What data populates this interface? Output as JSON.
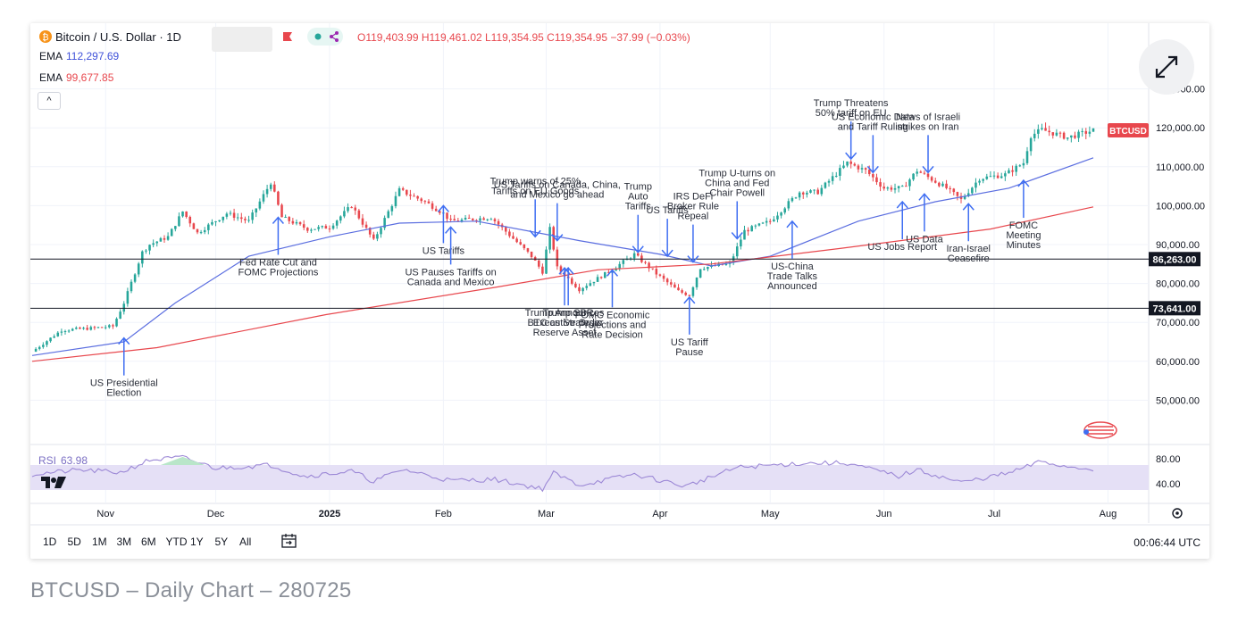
{
  "header": {
    "symbol": "Bitcoin / U.S. Dollar · 1D",
    "ohlc": "O119,403.99 H119,461.02 L119,354.95 C119,354.95 −37.99 (−0.03%)",
    "ema1_label": "EMA",
    "ema1_value": "112,297.69",
    "ema2_label": "EMA",
    "ema2_value": "99,677.85",
    "collapse_glyph": "^"
  },
  "toolbar": {
    "ranges": [
      "1D",
      "5D",
      "1M",
      "3M",
      "6M",
      "YTD",
      "1Y",
      "5Y",
      "All"
    ],
    "time": "00:06:44 UTC"
  },
  "rsi": {
    "label": "RSI",
    "value": "63.98",
    "ticks": [
      "80.00",
      "40.00"
    ]
  },
  "caption": "BTCUSD – Daily Chart – 280725",
  "colors": {
    "ema50": "#5b6ee0",
    "ema200": "#e8474d",
    "up": "#26a69a",
    "down": "#e8474d",
    "arrow": "#3f6ef2",
    "rsi": "#9c88d6",
    "rsi_band": "#e5e0f6",
    "badge": "#e8474d"
  },
  "chart_data": {
    "type": "candlestick",
    "symbol": "BTCUSD",
    "last_price_label": "BTCUSD",
    "ylim": [
      40000,
      140000
    ],
    "y_ticks": [
      "50,000.00",
      "60,000.00",
      "70,000.00",
      "80,000.00",
      "90,000.00",
      "100,000.00",
      "110,000.00",
      "120,000.00",
      "130,000.00"
    ],
    "x_ticks": [
      "Nov",
      "Dec",
      "2025",
      "Feb",
      "Mar",
      "Apr",
      "May",
      "Jun",
      "Jul",
      "Aug"
    ],
    "x_tick_dates": [
      "2024-11-01",
      "2024-12-01",
      "2025-01-01",
      "2025-02-01",
      "2025-03-01",
      "2025-04-01",
      "2025-05-01",
      "2025-06-01",
      "2025-07-01",
      "2025-08-01"
    ],
    "date_range": [
      "2024-10-12",
      "2025-07-28"
    ],
    "horizontal_lines": [
      {
        "value": 86263,
        "label": "86,263.00"
      },
      {
        "value": 73641,
        "label": "73,641.00"
      }
    ],
    "close_path": [
      [
        "2024-10-12",
        62500
      ],
      [
        "2024-10-20",
        68000
      ],
      [
        "2024-10-28",
        68500
      ],
      [
        "2024-11-03",
        69000
      ],
      [
        "2024-11-06",
        75000
      ],
      [
        "2024-11-11",
        88000
      ],
      [
        "2024-11-13",
        90000
      ],
      [
        "2024-11-18",
        92000
      ],
      [
        "2024-11-22",
        98500
      ],
      [
        "2024-11-26",
        93000
      ],
      [
        "2024-12-04",
        98000
      ],
      [
        "2024-12-10",
        96000
      ],
      [
        "2024-12-16",
        106000
      ],
      [
        "2024-12-19",
        97000
      ],
      [
        "2024-12-26",
        94000
      ],
      [
        "2025-01-01",
        94500
      ],
      [
        "2025-01-07",
        100000
      ],
      [
        "2025-01-13",
        91000
      ],
      [
        "2025-01-20",
        104000
      ],
      [
        "2025-01-27",
        101000
      ],
      [
        "2025-02-01",
        98000
      ],
      [
        "2025-02-03",
        96000
      ],
      [
        "2025-02-14",
        97000
      ],
      [
        "2025-02-25",
        87000
      ],
      [
        "2025-02-28",
        83000
      ],
      [
        "2025-03-02",
        94000
      ],
      [
        "2025-03-04",
        84000
      ],
      [
        "2025-03-10",
        78500
      ],
      [
        "2025-03-18",
        83000
      ],
      [
        "2025-03-25",
        87500
      ],
      [
        "2025-03-31",
        82500
      ],
      [
        "2025-04-06",
        78000
      ],
      [
        "2025-04-09",
        77000
      ],
      [
        "2025-04-12",
        84000
      ],
      [
        "2025-04-20",
        85000
      ],
      [
        "2025-04-24",
        93500
      ],
      [
        "2025-05-01",
        96000
      ],
      [
        "2025-05-09",
        103500
      ],
      [
        "2025-05-14",
        103500
      ],
      [
        "2025-05-22",
        111000
      ],
      [
        "2025-05-27",
        109000
      ],
      [
        "2025-06-01",
        104500
      ],
      [
        "2025-06-06",
        104500
      ],
      [
        "2025-06-10",
        109000
      ],
      [
        "2025-06-18",
        104500
      ],
      [
        "2025-06-22",
        101500
      ],
      [
        "2025-06-27",
        107000
      ],
      [
        "2025-07-04",
        108000
      ],
      [
        "2025-07-09",
        111000
      ],
      [
        "2025-07-11",
        118000
      ],
      [
        "2025-07-14",
        119500
      ],
      [
        "2025-07-21",
        117500
      ],
      [
        "2025-07-28",
        119355
      ]
    ],
    "series": [
      {
        "name": "EMA",
        "value_label": "112,297.69",
        "values": [
          [
            "2024-10-12",
            61500
          ],
          [
            "2024-11-06",
            65000
          ],
          [
            "2024-11-20",
            75000
          ],
          [
            "2024-12-10",
            87000
          ],
          [
            "2025-01-01",
            92000
          ],
          [
            "2025-01-20",
            95500
          ],
          [
            "2025-02-10",
            96000
          ],
          [
            "2025-03-10",
            91000
          ],
          [
            "2025-04-01",
            87500
          ],
          [
            "2025-04-15",
            84500
          ],
          [
            "2025-05-01",
            87000
          ],
          [
            "2025-05-25",
            96000
          ],
          [
            "2025-06-15",
            101000
          ],
          [
            "2025-07-05",
            104500
          ],
          [
            "2025-07-28",
            112298
          ]
        ]
      },
      {
        "name": "EMA",
        "value_label": "99,677.85",
        "values": [
          [
            "2024-10-12",
            60000
          ],
          [
            "2024-11-15",
            63500
          ],
          [
            "2024-12-31",
            72000
          ],
          [
            "2025-02-15",
            79000
          ],
          [
            "2025-03-15",
            83500
          ],
          [
            "2025-04-15",
            85000
          ],
          [
            "2025-05-20",
            89000
          ],
          [
            "2025-06-30",
            94000
          ],
          [
            "2025-07-28",
            99678
          ]
        ]
      }
    ],
    "rsi_series": {
      "name": "RSI",
      "ylim": [
        20,
        100
      ],
      "values": [
        [
          "2024-10-12",
          55
        ],
        [
          "2024-10-25",
          62
        ],
        [
          "2024-11-05",
          58
        ],
        [
          "2024-11-13",
          78
        ],
        [
          "2024-11-22",
          82
        ],
        [
          "2024-12-01",
          65
        ],
        [
          "2024-12-16",
          70
        ],
        [
          "2024-12-25",
          52
        ],
        [
          "2025-01-07",
          60
        ],
        [
          "2025-01-13",
          44
        ],
        [
          "2025-01-21",
          63
        ],
        [
          "2025-02-03",
          45
        ],
        [
          "2025-02-15",
          47
        ],
        [
          "2025-02-28",
          32
        ],
        [
          "2025-03-03",
          57
        ],
        [
          "2025-03-10",
          38
        ],
        [
          "2025-03-25",
          55
        ],
        [
          "2025-04-08",
          36
        ],
        [
          "2025-04-22",
          66
        ],
        [
          "2025-05-10",
          73
        ],
        [
          "2025-05-22",
          73
        ],
        [
          "2025-06-05",
          52
        ],
        [
          "2025-06-10",
          62
        ],
        [
          "2025-06-22",
          42
        ],
        [
          "2025-07-05",
          57
        ],
        [
          "2025-07-14",
          76
        ],
        [
          "2025-07-20",
          68
        ],
        [
          "2025-07-28",
          64
        ]
      ]
    },
    "annotations": [
      {
        "text": "US Presidential\nElection",
        "date": "2024-11-06",
        "value": 66000,
        "dir": "up"
      },
      {
        "text": "Fed Rate Cut and\nFOMC Projections",
        "date": "2024-12-18",
        "value": 97000,
        "dir": "up"
      },
      {
        "text": "US Tariffs",
        "date": "2025-02-01",
        "value": 100000,
        "dir": "up"
      },
      {
        "text": "US Pauses Tariffs on\nCanada and Mexico",
        "date": "2025-02-03",
        "value": 94500,
        "dir": "up"
      },
      {
        "text": "Trump warns of 25%\nTariffs on EU Goods",
        "date": "2025-02-26",
        "value": 92000,
        "dir": "down"
      },
      {
        "text": "US Tariffs on Canada, China,\nand Mexico go ahead",
        "date": "2025-03-04",
        "value": 91000,
        "dir": "down"
      },
      {
        "text": "Trump Announces\nBTC as Strategic\nReserve Asset",
        "date": "2025-03-06",
        "value": 84000,
        "dir": "up"
      },
      {
        "text": "Trump SBR\nExecutive Order",
        "date": "2025-03-07",
        "value": 84000,
        "dir": "up"
      },
      {
        "text": "Trump\nAuto\nTariffs",
        "date": "2025-03-26",
        "value": 88000,
        "dir": "down"
      },
      {
        "text": "FOMC Economic\nProjections and\nRate Decision",
        "date": "2025-03-19",
        "value": 83500,
        "dir": "up"
      },
      {
        "text": "US Tariffs",
        "date": "2025-04-03",
        "value": 87000,
        "dir": "down"
      },
      {
        "text": "IRS DeFi\nBroker Rule\nRepeal",
        "date": "2025-04-10",
        "value": 85500,
        "dir": "down"
      },
      {
        "text": "US Tariff\nPause",
        "date": "2025-04-09",
        "value": 76500,
        "dir": "up"
      },
      {
        "text": "Trump U-turns on\nChina and Fed\nChair Powell",
        "date": "2025-04-22",
        "value": 91500,
        "dir": "down"
      },
      {
        "text": "US-China\nTrade Talks\nAnnounced",
        "date": "2025-05-07",
        "value": 96000,
        "dir": "up"
      },
      {
        "text": "Trump Threatens\n50% tariff on EU",
        "date": "2025-05-23",
        "value": 112000,
        "dir": "down"
      },
      {
        "text": "US Economic Data\nand Tariff Ruling",
        "date": "2025-05-29",
        "value": 108500,
        "dir": "down"
      },
      {
        "text": "US Jobs Report",
        "date": "2025-06-06",
        "value": 101000,
        "dir": "up"
      },
      {
        "text": "News of Israeli\nstrikes on Iran",
        "date": "2025-06-13",
        "value": 108500,
        "dir": "down"
      },
      {
        "text": "US Data",
        "date": "2025-06-12",
        "value": 103000,
        "dir": "up"
      },
      {
        "text": "Iran-Israel\nCeasefire",
        "date": "2025-06-24",
        "value": 100500,
        "dir": "up"
      },
      {
        "text": "FOMC\nMeeting\nMinutes",
        "date": "2025-07-09",
        "value": 106500,
        "dir": "up"
      }
    ]
  }
}
